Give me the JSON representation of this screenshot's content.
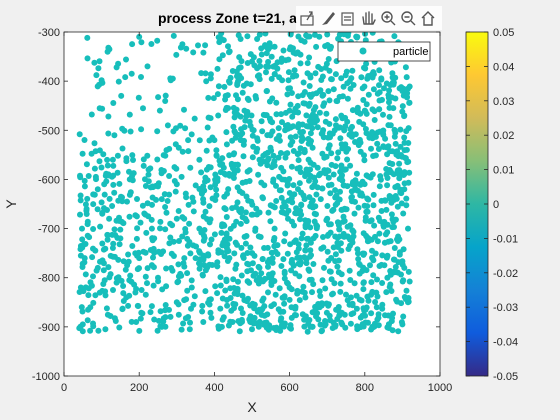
{
  "chart_data": {
    "type": "scatter",
    "title": "process Zone t=21, a",
    "xlabel": "X",
    "ylabel": "Y",
    "xlim": [
      0,
      1000
    ],
    "ylim": [
      -1000,
      -300
    ],
    "xticks": [
      0,
      200,
      400,
      600,
      800,
      1000
    ],
    "yticks": [
      -1000,
      -900,
      -800,
      -700,
      -600,
      -500,
      -400,
      -300
    ],
    "grid": false,
    "legend": {
      "entries": [
        "particle"
      ],
      "placement": "top-right"
    },
    "series": [
      {
        "name": "particle",
        "color": "#17bebb",
        "distribution": "dense particle cloud; x ~40-920, y ~-910 to -300; sparser in upper-left (x<400, y>-550), denser for x>400",
        "points": [
          [
            62,
            -312
          ],
          [
            118,
            -332
          ],
          [
            165,
            -356
          ],
          [
            200,
            -310
          ],
          [
            248,
            -318
          ],
          [
            292,
            -308
          ],
          [
            325,
            -334
          ],
          [
            180,
            -385
          ],
          [
            222,
            -370
          ],
          [
            140,
            -372
          ],
          [
            100,
            -398
          ],
          [
            152,
            -430
          ],
          [
            95,
            -455
          ],
          [
            118,
            -472
          ],
          [
            175,
            -468
          ],
          [
            210,
            -455
          ],
          [
            255,
            -460
          ],
          [
            205,
            -498
          ],
          [
            248,
            -502
          ],
          [
            298,
            -496
          ],
          [
            330,
            -520
          ],
          [
            360,
            -560
          ],
          [
            300,
            -610
          ],
          [
            225,
            -580
          ],
          [
            175,
            -600
          ],
          [
            130,
            -560
          ],
          [
            90,
            -620
          ],
          [
            60,
            -660
          ],
          [
            48,
            -700
          ],
          [
            55,
            -760
          ],
          [
            45,
            -820
          ],
          [
            70,
            -860
          ],
          [
            50,
            -895
          ],
          [
            110,
            -905
          ],
          [
            180,
            -890
          ],
          [
            260,
            -900
          ],
          [
            330,
            -880
          ],
          [
            420,
            -900
          ],
          [
            500,
            -905
          ],
          [
            580,
            -895
          ],
          [
            660,
            -900
          ],
          [
            740,
            -895
          ],
          [
            820,
            -900
          ],
          [
            900,
            -895
          ],
          [
            915,
            -850
          ],
          [
            905,
            -780
          ],
          [
            915,
            -700
          ],
          [
            905,
            -620
          ],
          [
            912,
            -540
          ],
          [
            905,
            -470
          ],
          [
            900,
            -420
          ],
          [
            880,
            -360
          ],
          [
            840,
            -320
          ],
          [
            780,
            -310
          ],
          [
            700,
            -305
          ],
          [
            640,
            -320
          ],
          [
            560,
            -330
          ],
          [
            500,
            -360
          ],
          [
            460,
            -390
          ],
          [
            430,
            -430
          ],
          [
            410,
            -470
          ],
          [
            400,
            -520
          ],
          [
            380,
            -580
          ],
          [
            370,
            -640
          ],
          [
            360,
            -700
          ],
          [
            350,
            -760
          ],
          [
            340,
            -820
          ],
          [
            300,
            -850
          ],
          [
            250,
            -800
          ],
          [
            200,
            -760
          ],
          [
            150,
            -720
          ],
          [
            120,
            -680
          ],
          [
            240,
            -720
          ],
          [
            300,
            -680
          ],
          [
            260,
            -640
          ],
          [
            320,
            -760
          ],
          [
            140,
            -810
          ],
          [
            90,
            -780
          ],
          [
            190,
            -830
          ],
          [
            230,
            -870
          ],
          [
            470,
            -520
          ],
          [
            520,
            -560
          ],
          [
            580,
            -600
          ],
          [
            640,
            -640
          ],
          [
            700,
            -680
          ],
          [
            760,
            -720
          ],
          [
            820,
            -760
          ],
          [
            860,
            -800
          ],
          [
            520,
            -780
          ],
          [
            600,
            -820
          ],
          [
            680,
            -860
          ],
          [
            560,
            -700
          ],
          [
            640,
            -540
          ],
          [
            720,
            -500
          ],
          [
            800,
            -460
          ],
          [
            760,
            -400
          ],
          [
            680,
            -420
          ],
          [
            600,
            -460
          ],
          [
            540,
            -420
          ],
          [
            480,
            -460
          ]
        ]
      }
    ],
    "colorbar": {
      "min": -0.05,
      "max": 0.05,
      "ticks": [
        "0.05",
        "0.04",
        "0.03",
        "0.02",
        "0.01",
        "0",
        "-0.01",
        "-0.02",
        "-0.03",
        "-0.04",
        "-0.05"
      ],
      "colormap": "parula"
    }
  },
  "toolbar": {
    "icons": [
      "export-icon",
      "brush-icon",
      "datatip-icon",
      "pan-icon",
      "zoom-in-icon",
      "zoom-out-icon",
      "home-icon"
    ]
  }
}
